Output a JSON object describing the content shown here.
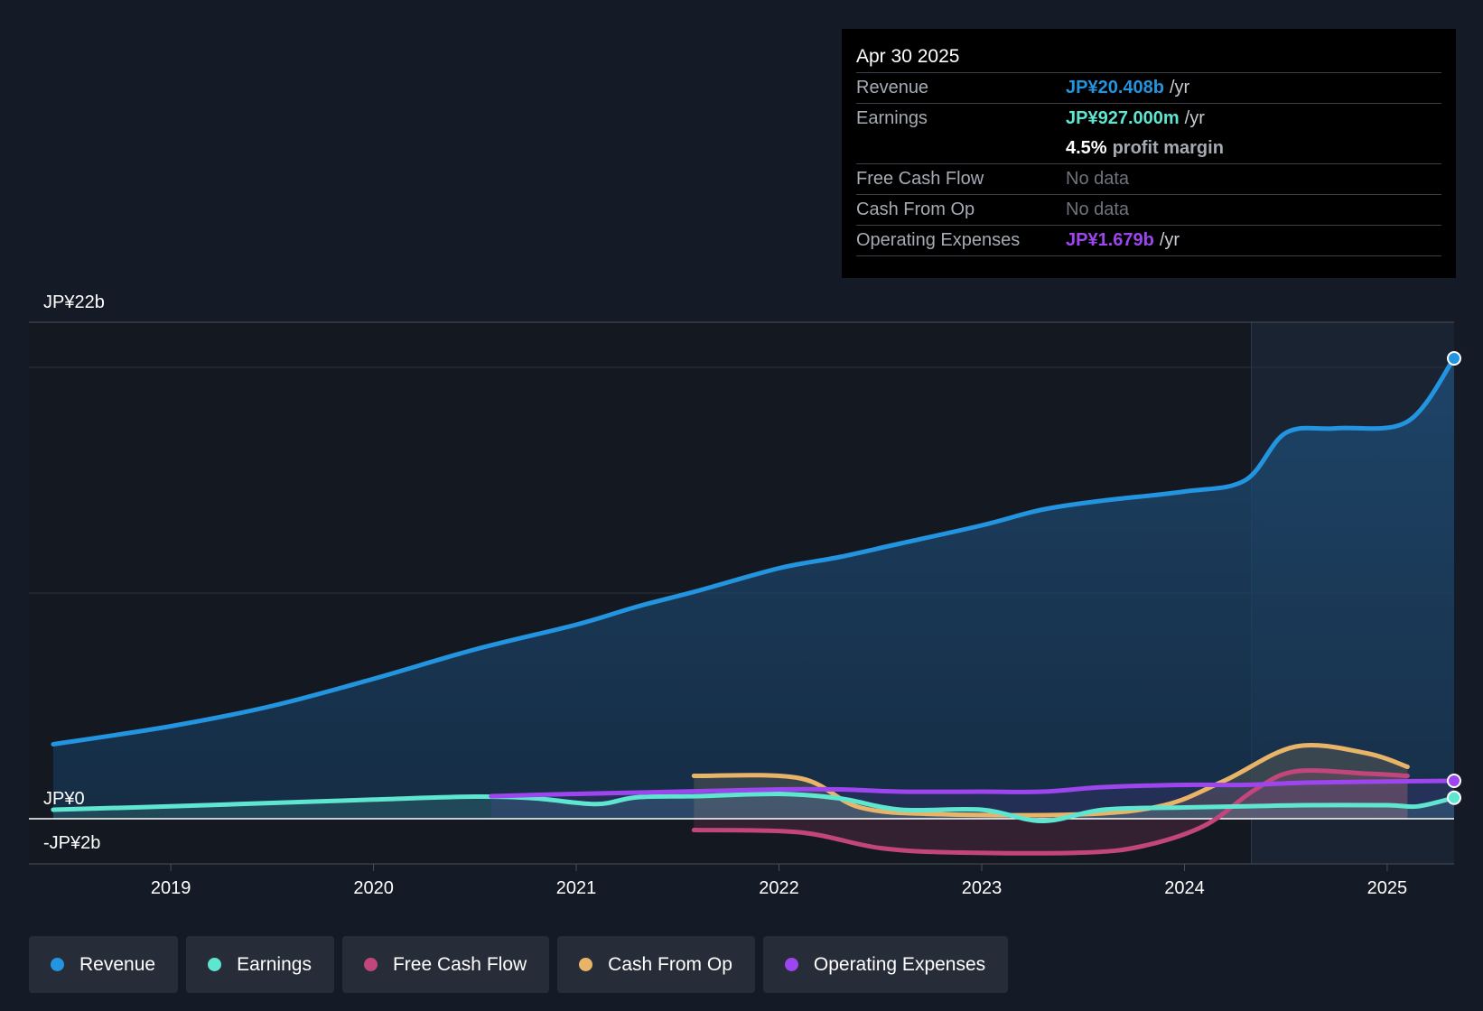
{
  "tooltip": {
    "date": "Apr 30 2025",
    "rows": {
      "revenue": {
        "label": "Revenue",
        "value": "JP¥20.408b",
        "unit": "/yr"
      },
      "earnings": {
        "label": "Earnings",
        "value": "JP¥927.000m",
        "unit": "/yr"
      },
      "margin": {
        "value": "4.5%",
        "text": "profit margin"
      },
      "fcf": {
        "label": "Free Cash Flow",
        "value": "No data"
      },
      "cfo": {
        "label": "Cash From Op",
        "value": "No data"
      },
      "opex": {
        "label": "Operating Expenses",
        "value": "JP¥1.679b",
        "unit": "/yr"
      }
    }
  },
  "legend": [
    {
      "label": "Revenue",
      "color": "#2394df"
    },
    {
      "label": "Earnings",
      "color": "#5ee6d0"
    },
    {
      "label": "Free Cash Flow",
      "color": "#c2467c"
    },
    {
      "label": "Cash From Op",
      "color": "#e8b468"
    },
    {
      "label": "Operating Expenses",
      "color": "#9d45ee"
    }
  ],
  "chart_data": {
    "type": "line",
    "y_tick_labels": [
      "JP¥22b",
      "JP¥0",
      "-JP¥2b"
    ],
    "ylim": [
      -2,
      22
    ],
    "xlim": [
      2018.3,
      2025.33
    ],
    "x_ticks": [
      2019,
      2020,
      2021,
      2022,
      2023,
      2024,
      2025
    ],
    "x_tick_labels": [
      "2019",
      "2020",
      "2021",
      "2022",
      "2023",
      "2024",
      "2025"
    ],
    "past_data_start": 2024.33,
    "colors": {
      "revenue": "#2394df",
      "earnings": "#5ee6d0",
      "fcf": "#c2467c",
      "cfo": "#e8b468",
      "opex": "#9d45ee"
    },
    "series": [
      {
        "name": "Revenue",
        "key": "revenue",
        "points": [
          [
            2018.42,
            3.3
          ],
          [
            2019.0,
            4.1
          ],
          [
            2019.5,
            5.0
          ],
          [
            2020.0,
            6.2
          ],
          [
            2020.5,
            7.5
          ],
          [
            2021.0,
            8.6
          ],
          [
            2021.3,
            9.4
          ],
          [
            2021.6,
            10.1
          ],
          [
            2022.0,
            11.1
          ],
          [
            2022.3,
            11.6
          ],
          [
            2022.6,
            12.2
          ],
          [
            2023.0,
            13.0
          ],
          [
            2023.3,
            13.7
          ],
          [
            2023.6,
            14.1
          ],
          [
            2024.0,
            14.5
          ],
          [
            2024.3,
            15.0
          ],
          [
            2024.5,
            17.1
          ],
          [
            2024.75,
            17.3
          ],
          [
            2025.1,
            17.6
          ],
          [
            2025.33,
            20.4
          ]
        ]
      },
      {
        "name": "Earnings",
        "key": "earnings",
        "points": [
          [
            2018.42,
            0.4
          ],
          [
            2019.0,
            0.55
          ],
          [
            2019.5,
            0.7
          ],
          [
            2020.0,
            0.85
          ],
          [
            2020.5,
            0.98
          ],
          [
            2020.8,
            0.9
          ],
          [
            2021.1,
            0.65
          ],
          [
            2021.3,
            0.95
          ],
          [
            2021.6,
            1.0
          ],
          [
            2022.0,
            1.1
          ],
          [
            2022.3,
            0.9
          ],
          [
            2022.6,
            0.4
          ],
          [
            2023.0,
            0.4
          ],
          [
            2023.3,
            -0.1
          ],
          [
            2023.6,
            0.4
          ],
          [
            2024.0,
            0.5
          ],
          [
            2024.3,
            0.55
          ],
          [
            2024.6,
            0.6
          ],
          [
            2025.0,
            0.6
          ],
          [
            2025.15,
            0.55
          ],
          [
            2025.33,
            0.93
          ]
        ]
      },
      {
        "name": "Free Cash Flow",
        "key": "fcf",
        "points": [
          [
            2021.58,
            -0.5
          ],
          [
            2022.1,
            -0.6
          ],
          [
            2022.5,
            -1.3
          ],
          [
            2022.9,
            -1.5
          ],
          [
            2023.5,
            -1.5
          ],
          [
            2023.8,
            -1.2
          ],
          [
            2024.1,
            -0.3
          ],
          [
            2024.35,
            1.3
          ],
          [
            2024.55,
            2.1
          ],
          [
            2024.9,
            2.0
          ],
          [
            2025.1,
            1.9
          ]
        ]
      },
      {
        "name": "Cash From Op",
        "key": "cfo",
        "points": [
          [
            2021.58,
            1.9
          ],
          [
            2022.1,
            1.8
          ],
          [
            2022.4,
            0.5
          ],
          [
            2022.8,
            0.2
          ],
          [
            2023.5,
            0.2
          ],
          [
            2023.9,
            0.6
          ],
          [
            2024.2,
            1.7
          ],
          [
            2024.55,
            3.2
          ],
          [
            2024.9,
            2.9
          ],
          [
            2025.1,
            2.3
          ]
        ]
      },
      {
        "name": "Operating Expenses",
        "key": "opex",
        "points": [
          [
            2020.58,
            1.0
          ],
          [
            2021.0,
            1.1
          ],
          [
            2021.5,
            1.2
          ],
          [
            2022.0,
            1.3
          ],
          [
            2022.3,
            1.3
          ],
          [
            2022.6,
            1.2
          ],
          [
            2023.0,
            1.2
          ],
          [
            2023.3,
            1.2
          ],
          [
            2023.6,
            1.4
          ],
          [
            2024.0,
            1.5
          ],
          [
            2024.3,
            1.5
          ],
          [
            2024.6,
            1.6
          ],
          [
            2025.0,
            1.65
          ],
          [
            2025.33,
            1.68
          ]
        ]
      }
    ]
  }
}
